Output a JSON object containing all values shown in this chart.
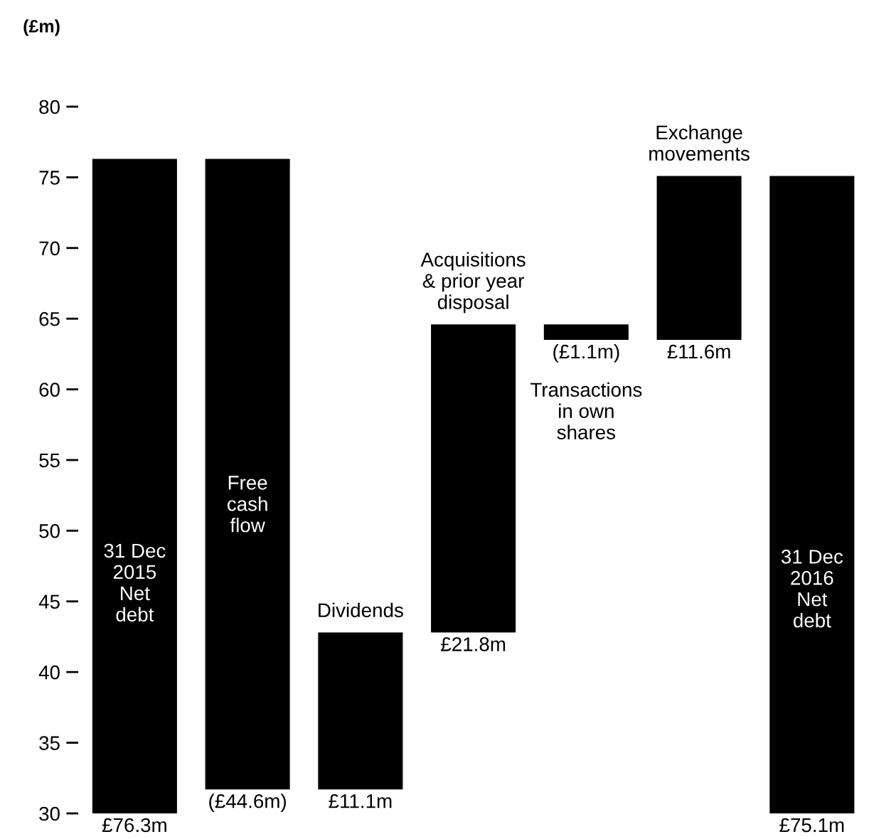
{
  "chart_data": {
    "type": "bar",
    "ylabel": "(£m)",
    "categories": [
      "31 Dec\n2015\nNet\ndebt",
      "Free\ncash\nflow",
      "Dividends",
      "Acquisitions\n& prior year\ndisposal",
      "Transactions\nin own\nshares",
      "Exchange\nmovements",
      "31 Dec\n2016\nNet\ndebt"
    ],
    "values": [
      76.3,
      -44.6,
      11.1,
      21.8,
      -1.1,
      11.6,
      75.1
    ],
    "base": [
      null,
      76.3,
      31.7,
      42.8,
      64.6,
      63.5,
      null
    ],
    "value_labels": [
      "£76.3m",
      "(£44.6m)",
      "£11.1m",
      "£21.8m",
      "(£1.1m)",
      "£11.6m",
      "£75.1m"
    ],
    "color": "#000000",
    "ylim": [
      30,
      80
    ],
    "yticks": [
      30,
      35,
      40,
      45,
      50,
      55,
      60,
      65,
      70,
      75,
      80
    ],
    "grid": false
  }
}
